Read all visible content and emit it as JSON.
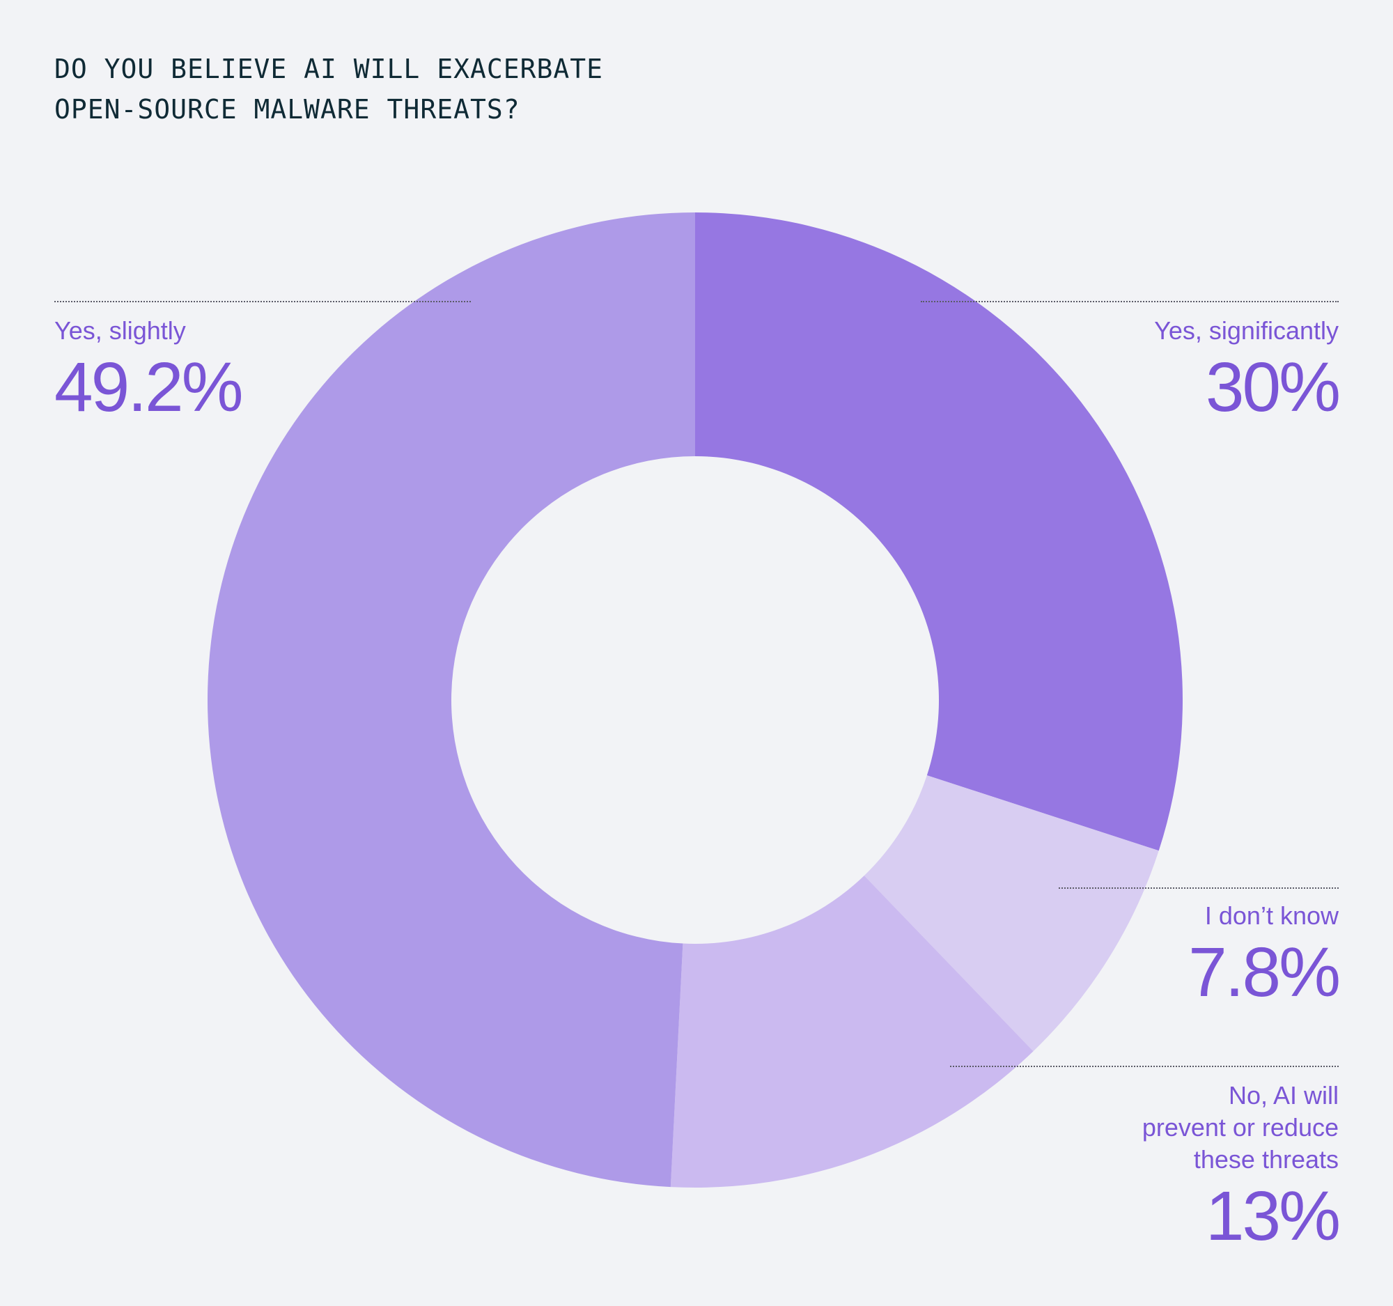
{
  "title": {
    "line1": "DO YOU BELIEVE AI WILL EXACERBATE",
    "line2": "OPEN-SOURCE MALWARE THREATS?"
  },
  "chart_data": {
    "type": "pie",
    "title": "DO YOU BELIEVE AI WILL EXACERBATE OPEN-SOURCE MALWARE THREATS?",
    "slices": [
      {
        "label": "Yes, significantly",
        "value": 30,
        "display": "30%",
        "color": "#9677e2"
      },
      {
        "label": "I don’t know",
        "value": 7.8,
        "display": "7.8%",
        "color": "#d8cdf2"
      },
      {
        "label": "No, AI will prevent or reduce these threats",
        "value": 13,
        "display": "13%",
        "color": "#cbbaf0"
      },
      {
        "label": "Yes, slightly",
        "value": 49.2,
        "display": "49.2%",
        "color": "#ae9ae8"
      }
    ]
  },
  "callouts": {
    "slightly": {
      "label": "Yes, slightly",
      "value": "49.2%"
    },
    "significantly": {
      "label": "Yes, significantly",
      "value": "30%"
    },
    "dontknow": {
      "label": "I don’t know",
      "value": "7.8%"
    },
    "no": {
      "label_lines": [
        "No, AI will",
        "prevent or reduce",
        "these threats"
      ],
      "value": "13%"
    }
  }
}
